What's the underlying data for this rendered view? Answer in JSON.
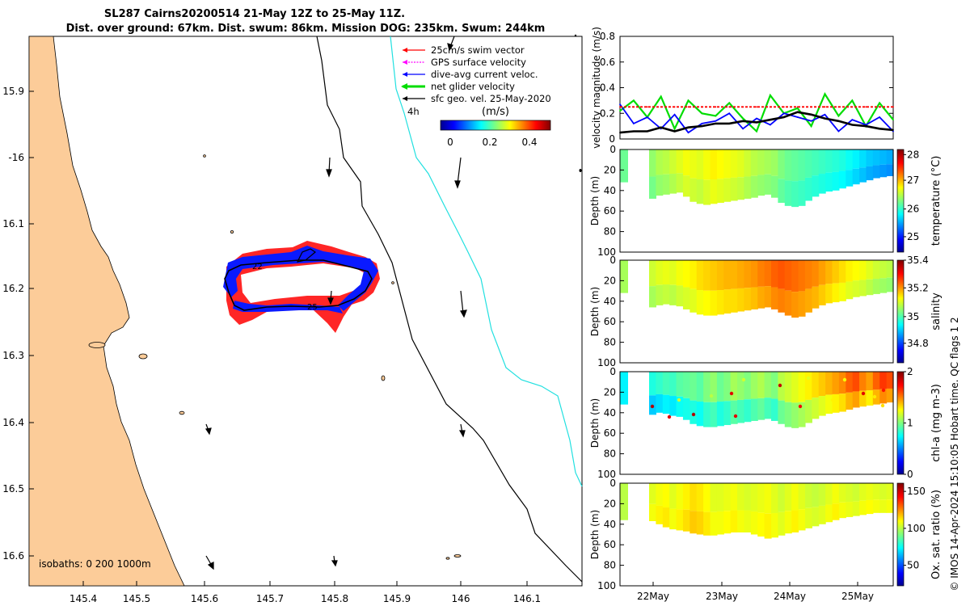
{
  "figure": {
    "title_line1": "SL287 Cairns20200514 21-May 12Z to 25-May 11Z.",
    "title_line2": "Dist. over ground: 67km. Dist. swum: 86km. Mission DOG: 235km. Swum: 244km",
    "footer": "© IMOS 14-Apr-2024 15:10:05 Hobart time. QC flags 1  2"
  },
  "map": {
    "lon_ticks": [
      "145.4",
      "145.5",
      "145.6",
      "145.7",
      "145.8",
      "145.9",
      "146",
      "146.1"
    ],
    "lat_ticks": [
      "15.9",
      "-16",
      "16.1",
      "16.2",
      "16.3",
      "16.4",
      "16.5",
      "16.6"
    ],
    "legend": {
      "items": [
        {
          "label": "25cm/s swim vector",
          "color": "#ff0000"
        },
        {
          "label": "GPS surface velocity",
          "color": "#ff00ff"
        },
        {
          "label": "dive-avg current veloc.",
          "color": "#0000ff"
        },
        {
          "label": "net glider velocity",
          "color": "#00dd00"
        },
        {
          "label": "sfc geo. vel. 25-May-2020",
          "color": "#000000"
        }
      ],
      "time_label": "4h",
      "colorbar_unit": "(m/s)",
      "colorbar_ticks": [
        "0",
        "0.2",
        "0.4"
      ]
    },
    "isobaths_label": "isobaths: 0   200  1000m",
    "day_labels": [
      "22",
      "25"
    ],
    "colors": {
      "land": "#fccc99",
      "contour_200": "#000000",
      "contour_1000": "#22e0e0"
    }
  },
  "chart_data": [
    {
      "type": "line",
      "title": "",
      "ylabel": "velocity magnitude (m/s)",
      "ylim": [
        0,
        0.8
      ],
      "y_ticks": [
        "0",
        "0.2",
        "0.4",
        "0.6",
        "0.8"
      ],
      "xlim": [
        0,
        100
      ],
      "x": [
        0,
        5,
        10,
        15,
        20,
        25,
        30,
        35,
        40,
        45,
        50,
        55,
        60,
        65,
        70,
        75,
        80,
        85,
        90,
        95,
        100
      ],
      "series": [
        {
          "name": "net glider velocity",
          "color": "#00dd00",
          "values": [
            0.22,
            0.3,
            0.17,
            0.33,
            0.08,
            0.3,
            0.2,
            0.18,
            0.28,
            0.16,
            0.06,
            0.34,
            0.2,
            0.24,
            0.1,
            0.35,
            0.18,
            0.3,
            0.1,
            0.28,
            0.15
          ]
        },
        {
          "name": "dive-avg current veloc.",
          "color": "#0000ff",
          "values": [
            0.27,
            0.12,
            0.17,
            0.08,
            0.19,
            0.05,
            0.12,
            0.14,
            0.2,
            0.08,
            0.16,
            0.11,
            0.2,
            0.17,
            0.14,
            0.19,
            0.06,
            0.15,
            0.11,
            0.17,
            0.06
          ]
        },
        {
          "name": "sfc geo. vel.",
          "color": "#000000",
          "values": [
            0.05,
            0.06,
            0.06,
            0.09,
            0.06,
            0.09,
            0.1,
            0.12,
            0.12,
            0.14,
            0.13,
            0.15,
            0.17,
            0.21,
            0.19,
            0.16,
            0.14,
            0.11,
            0.1,
            0.08,
            0.07
          ]
        },
        {
          "name": "25cm/s swim vector",
          "color": "#ff0000",
          "values": [
            0.25,
            0.25,
            0.25,
            0.25,
            0.25,
            0.25,
            0.25,
            0.25,
            0.25,
            0.25,
            0.25,
            0.25,
            0.25,
            0.25,
            0.25,
            0.25,
            0.25,
            0.25,
            0.25,
            0.25,
            0.25
          ]
        }
      ]
    },
    {
      "type": "heatmap",
      "ylabel": "Depth (m)",
      "colorbar_label": "temperature (°C)",
      "ylim": [
        100,
        0
      ],
      "y_ticks": [
        "0",
        "20",
        "40",
        "60",
        "80",
        "100"
      ],
      "colorbar_ticks": [
        "25",
        "26",
        "27",
        "28"
      ],
      "bottom_depth": [
        48,
        45,
        44,
        43,
        42,
        46,
        51,
        53,
        54,
        53,
        52,
        51,
        50,
        49,
        48,
        47,
        45,
        44,
        47,
        52,
        55,
        56,
        55,
        50,
        46,
        43,
        41,
        40,
        38,
        36,
        34,
        32,
        30,
        28,
        27,
        26
      ],
      "surface_value": [
        0.52,
        0.55,
        0.56,
        0.58,
        0.6,
        0.62,
        0.61,
        0.6,
        0.62,
        0.64,
        0.63,
        0.62,
        0.61,
        0.6,
        0.58,
        0.56,
        0.55,
        0.54,
        0.53,
        0.5,
        0.48,
        0.47,
        0.46,
        0.45,
        0.44,
        0.43,
        0.42,
        0.41,
        0.4,
        0.38,
        0.36,
        0.34,
        0.32,
        0.31,
        0.3,
        0.29
      ]
    },
    {
      "type": "heatmap",
      "ylabel": "Depth (m)",
      "colorbar_label": "salinity",
      "ylim": [
        100,
        0
      ],
      "y_ticks": [
        "0",
        "20",
        "40",
        "60",
        "80",
        "100"
      ],
      "colorbar_ticks": [
        "34.8",
        "35",
        "35.2",
        "35.4"
      ],
      "bottom_depth": [
        46,
        44,
        43,
        44,
        45,
        48,
        51,
        53,
        54,
        54,
        53,
        52,
        51,
        50,
        49,
        48,
        47,
        46,
        48,
        51,
        54,
        56,
        55,
        51,
        47,
        44,
        42,
        41,
        40,
        38,
        36,
        35,
        34,
        33,
        32,
        31
      ],
      "surface_value": [
        0.58,
        0.6,
        0.61,
        0.6,
        0.62,
        0.63,
        0.64,
        0.66,
        0.67,
        0.68,
        0.69,
        0.7,
        0.7,
        0.71,
        0.72,
        0.73,
        0.75,
        0.76,
        0.78,
        0.79,
        0.78,
        0.77,
        0.76,
        0.75,
        0.74,
        0.72,
        0.7,
        0.68,
        0.66,
        0.64,
        0.63,
        0.62,
        0.6,
        0.58,
        0.57,
        0.56
      ]
    },
    {
      "type": "heatmap",
      "ylabel": "Depth (m)",
      "colorbar_label": "chl-a (mg m-3)",
      "ylim": [
        100,
        0
      ],
      "y_ticks": [
        "0",
        "20",
        "40",
        "60",
        "80",
        "100"
      ],
      "colorbar_ticks": [
        "0",
        "1",
        "2"
      ],
      "bottom_depth": [
        42,
        40,
        41,
        43,
        44,
        47,
        51,
        53,
        54,
        54,
        53,
        52,
        51,
        50,
        49,
        48,
        47,
        46,
        48,
        51,
        54,
        55,
        54,
        50,
        46,
        43,
        41,
        40,
        39,
        37,
        35,
        34,
        33,
        32,
        31,
        30
      ],
      "surface_value": [
        0.4,
        0.42,
        0.44,
        0.43,
        0.46,
        0.47,
        0.48,
        0.46,
        0.5,
        0.52,
        0.48,
        0.5,
        0.54,
        0.52,
        0.5,
        0.53,
        0.55,
        0.52,
        0.5,
        0.56,
        0.58,
        0.6,
        0.62,
        0.64,
        0.66,
        0.68,
        0.7,
        0.72,
        0.74,
        0.78,
        0.8,
        0.75,
        0.72,
        0.78,
        0.82,
        0.8
      ]
    },
    {
      "type": "heatmap",
      "ylabel": "Depth (m)",
      "colorbar_label": "Ox. sat. ratio (%)",
      "ylim": [
        100,
        0
      ],
      "y_ticks": [
        "0",
        "20",
        "40",
        "60",
        "80",
        "100"
      ],
      "colorbar_ticks": [
        "50",
        "100",
        "150"
      ],
      "x_ticks": [
        "22May",
        "23May",
        "24May",
        "25May"
      ],
      "bottom_depth": [
        37,
        40,
        43,
        45,
        46,
        47,
        49,
        50,
        51,
        51,
        50,
        49,
        48,
        48,
        48,
        50,
        52,
        54,
        53,
        51,
        49,
        48,
        46,
        44,
        42,
        40,
        38,
        36,
        34,
        33,
        32,
        31,
        30,
        29,
        29,
        29
      ],
      "surface_value": [
        0.6,
        0.62,
        0.63,
        0.6,
        0.62,
        0.64,
        0.66,
        0.65,
        0.63,
        0.6,
        0.6,
        0.61,
        0.62,
        0.6,
        0.59,
        0.6,
        0.61,
        0.62,
        0.6,
        0.58,
        0.6,
        0.62,
        0.6,
        0.58,
        0.57,
        0.58,
        0.6,
        0.62,
        0.6,
        0.59,
        0.58,
        0.6,
        0.61,
        0.6,
        0.59,
        0.6
      ]
    }
  ]
}
